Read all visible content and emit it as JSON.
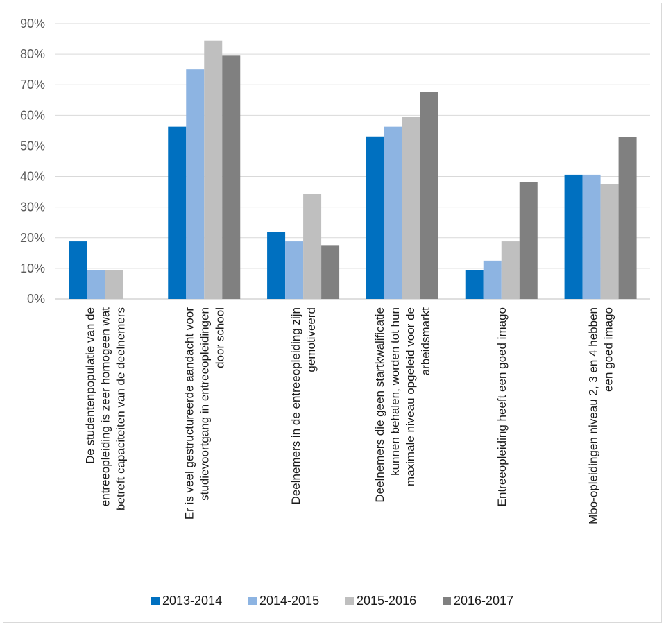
{
  "chart_data": {
    "type": "bar",
    "title": "",
    "xlabel": "",
    "ylabel": "",
    "ylim": [
      0,
      90
    ],
    "yticks": [
      0,
      10,
      20,
      30,
      40,
      50,
      60,
      70,
      80,
      90
    ],
    "ytick_format": "percent",
    "grid": true,
    "legend_position": "bottom",
    "categories": [
      [
        "De studentenpopulatie van de",
        "entreeopleiding is zeer homogeen wat",
        "betreft capaciteiten van de deelnemers"
      ],
      [
        "Er is veel gestructureerde aandacht voor",
        "studievoortgang in entreeopleidingen",
        "door school"
      ],
      [
        "Deelnemers in de entreeopleiding zijn",
        "gemotiveerd"
      ],
      [
        "Deelnemers die geen startkwalificatie",
        "kunnen behalen, worden tot hun",
        "maximale niveau opgeleid voor de",
        "arbeidsmarkt"
      ],
      [
        "Entreeopleiding heeft een goed imago"
      ],
      [
        "Mbo-opleidingen niveau 2, 3 en 4 hebben",
        "een goed imago"
      ]
    ],
    "series": [
      {
        "name": "2013-2014",
        "color": "#0070c0",
        "values": [
          18.8,
          56.3,
          21.9,
          53.1,
          9.4,
          40.6
        ]
      },
      {
        "name": "2014-2015",
        "color": "#8db4e2",
        "values": [
          9.4,
          75.0,
          18.8,
          56.3,
          12.5,
          40.6
        ]
      },
      {
        "name": "2015-2016",
        "color": "#bfbfbf",
        "values": [
          9.4,
          84.4,
          34.4,
          59.4,
          18.8,
          37.5
        ]
      },
      {
        "name": "2016-2017",
        "color": "#808080",
        "values": [
          0,
          79.5,
          17.6,
          67.6,
          38.2,
          52.9
        ]
      }
    ]
  }
}
